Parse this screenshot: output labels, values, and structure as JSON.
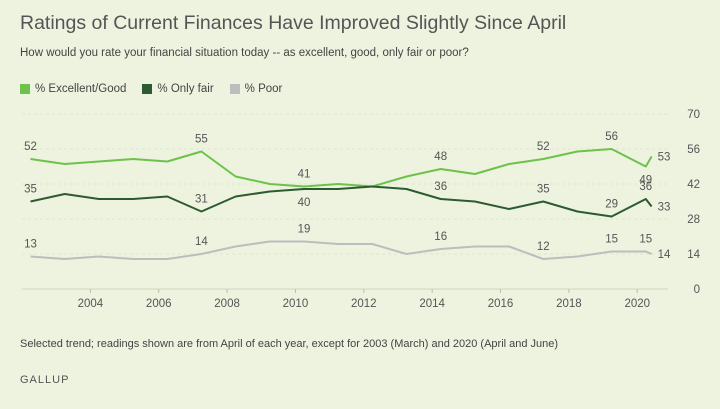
{
  "colors": {
    "excellent_good": "#6cc24a",
    "only_fair": "#2d5b31",
    "poor": "#bdbdbd"
  },
  "chart_data": {
    "type": "line",
    "title": "Ratings of Current Finances Have Improved Slightly Since April",
    "subtitle": "How would you rate your financial situation today -- as excellent, good, only fair or poor?",
    "xlabel": "",
    "ylabel": "",
    "ylim": [
      0,
      70
    ],
    "yticks": [
      0,
      14,
      28,
      42,
      56,
      70
    ],
    "xticks": [
      2004,
      2006,
      2008,
      2010,
      2012,
      2014,
      2016,
      2018,
      2020
    ],
    "x": [
      2002.25,
      2003.25,
      2004.25,
      2005.25,
      2006.25,
      2007.25,
      2008.25,
      2009.25,
      2010.25,
      2011.25,
      2012.25,
      2013.25,
      2014.25,
      2015.25,
      2016.25,
      2017.25,
      2018.25,
      2019.25,
      2020.25,
      2020.42
    ],
    "series": [
      {
        "name": "% Excellent/Good",
        "key": "excellent_good",
        "values": [
          52,
          50,
          51,
          52,
          51,
          55,
          45,
          42,
          41,
          42,
          41,
          45,
          48,
          46,
          50,
          52,
          55,
          56,
          49,
          53
        ]
      },
      {
        "name": "% Only fair",
        "key": "only_fair",
        "values": [
          35,
          38,
          36,
          36,
          37,
          31,
          37,
          39,
          40,
          40,
          41,
          40,
          36,
          35,
          32,
          35,
          31,
          29,
          36,
          33
        ]
      },
      {
        "name": "% Poor",
        "key": "poor",
        "values": [
          13,
          12,
          13,
          12,
          12,
          14,
          17,
          19,
          19,
          18,
          18,
          14,
          16,
          17,
          17,
          12,
          13,
          15,
          15,
          14
        ]
      }
    ],
    "data_labels": [
      {
        "series": "excellent_good",
        "index": 0,
        "text": "52",
        "pos": "above"
      },
      {
        "series": "excellent_good",
        "index": 5,
        "text": "55",
        "pos": "above"
      },
      {
        "series": "excellent_good",
        "index": 8,
        "text": "41",
        "pos": "above"
      },
      {
        "series": "excellent_good",
        "index": 12,
        "text": "48",
        "pos": "above"
      },
      {
        "series": "excellent_good",
        "index": 15,
        "text": "52",
        "pos": "above"
      },
      {
        "series": "excellent_good",
        "index": 17,
        "text": "56",
        "pos": "above"
      },
      {
        "series": "excellent_good",
        "index": 18,
        "text": "49",
        "pos": "below"
      },
      {
        "series": "excellent_good",
        "index": 19,
        "text": "53",
        "pos": "right"
      },
      {
        "series": "only_fair",
        "index": 0,
        "text": "35",
        "pos": "above"
      },
      {
        "series": "only_fair",
        "index": 5,
        "text": "31",
        "pos": "above"
      },
      {
        "series": "only_fair",
        "index": 8,
        "text": "40",
        "pos": "below"
      },
      {
        "series": "only_fair",
        "index": 12,
        "text": "36",
        "pos": "above"
      },
      {
        "series": "only_fair",
        "index": 15,
        "text": "35",
        "pos": "above"
      },
      {
        "series": "only_fair",
        "index": 17,
        "text": "29",
        "pos": "above"
      },
      {
        "series": "only_fair",
        "index": 18,
        "text": "36",
        "pos": "above"
      },
      {
        "series": "only_fair",
        "index": 19,
        "text": "33",
        "pos": "right"
      },
      {
        "series": "poor",
        "index": 0,
        "text": "13",
        "pos": "above"
      },
      {
        "series": "poor",
        "index": 5,
        "text": "14",
        "pos": "above"
      },
      {
        "series": "poor",
        "index": 8,
        "text": "19",
        "pos": "above"
      },
      {
        "series": "poor",
        "index": 12,
        "text": "16",
        "pos": "above"
      },
      {
        "series": "poor",
        "index": 15,
        "text": "12",
        "pos": "above"
      },
      {
        "series": "poor",
        "index": 17,
        "text": "15",
        "pos": "above"
      },
      {
        "series": "poor",
        "index": 18,
        "text": "15",
        "pos": "above"
      },
      {
        "series": "poor",
        "index": 19,
        "text": "14",
        "pos": "right"
      }
    ]
  },
  "note": "Selected trend; readings shown are from April of each year, except for 2003 (March) and 2020 (April and June)",
  "source": "GALLUP"
}
